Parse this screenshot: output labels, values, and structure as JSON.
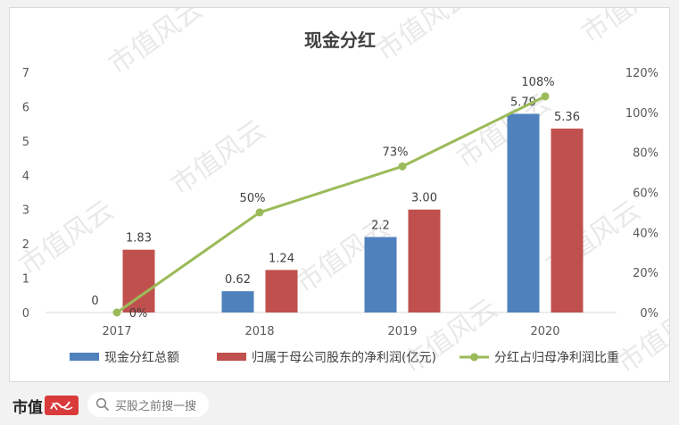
{
  "chart_data": {
    "type": "bar",
    "title": "现金分红",
    "categories": [
      "2017",
      "2018",
      "2019",
      "2020"
    ],
    "series": [
      {
        "name": "现金分红总额",
        "type": "bar",
        "axis": "left",
        "color": "#4f81bd",
        "values": [
          0,
          0.62,
          2.2,
          5.79
        ],
        "labels": [
          "0",
          "0.62",
          "2.2",
          "5.79"
        ]
      },
      {
        "name": "归属于母公司股东的净利润(亿元)",
        "type": "bar",
        "axis": "left",
        "color": "#c0504d",
        "values": [
          1.83,
          1.24,
          3.0,
          5.36
        ],
        "labels": [
          "1.83",
          "1.24",
          "3.00",
          "5.36"
        ]
      },
      {
        "name": "分红占归母净利润比重",
        "type": "line",
        "axis": "right",
        "color": "#9bbb59",
        "values": [
          0,
          0.5,
          0.73,
          1.08
        ],
        "labels": [
          "0%",
          "50%",
          "73%",
          "108%"
        ]
      }
    ],
    "ylim": [
      0,
      7
    ],
    "yticks": [
      "0",
      "1",
      "2",
      "3",
      "4",
      "5",
      "6",
      "7"
    ],
    "y2lim": [
      0,
      1.2
    ],
    "y2ticks": [
      "0%",
      "20%",
      "40%",
      "60%",
      "80%",
      "100%",
      "120%"
    ],
    "grid": false,
    "legend": "bottom"
  },
  "watermark": "市值风云",
  "footer": {
    "logo_text": "市值",
    "logo_badge_text": "风云",
    "search_placeholder": "买股之前搜一搜"
  }
}
